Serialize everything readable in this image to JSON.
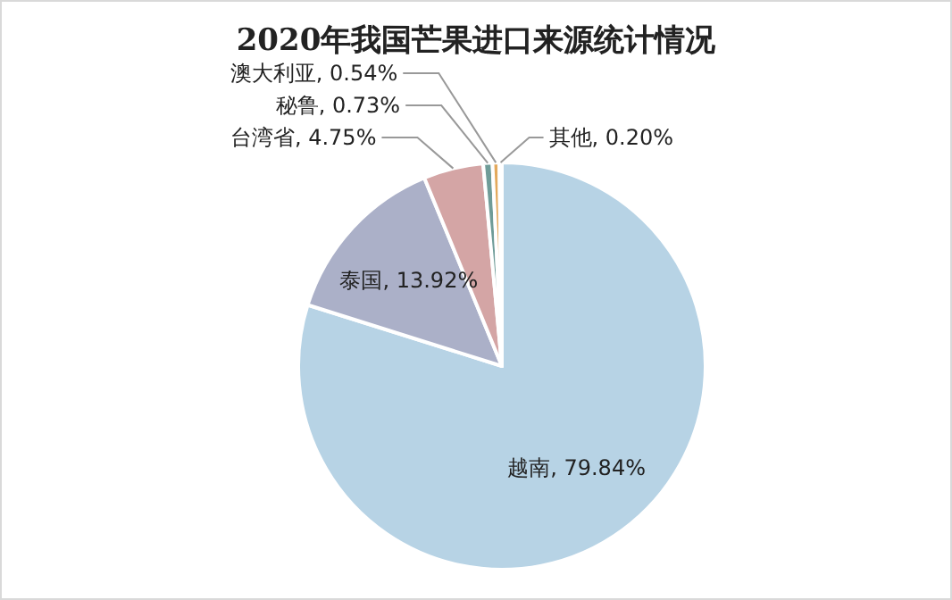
{
  "chart_data": {
    "type": "pie",
    "title": "2020年我国芒果进口来源统计情况",
    "categories": [
      "越南",
      "泰国",
      "台湾省",
      "秘鲁",
      "澳大利亚",
      "其他"
    ],
    "values": [
      79.84,
      13.92,
      4.75,
      0.73,
      0.54,
      0.2
    ],
    "colors": [
      "#b7d3e5",
      "#abb0c8",
      "#d4a5a5",
      "#6f9c98",
      "#e3a95c",
      "#c9d6e3"
    ],
    "value_labels": [
      ", 79.84%",
      ", 13.92%",
      ", 4.75%",
      ", 0.73%",
      ", 0.54%",
      ", 0.20%"
    ]
  }
}
